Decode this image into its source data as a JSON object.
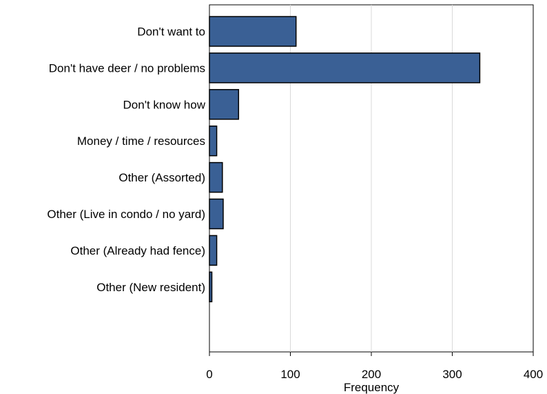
{
  "chart_data": {
    "type": "bar",
    "orientation": "horizontal",
    "categories": [
      "Don't want to",
      "Don't have deer / no problems",
      "Don't know how",
      "Money / time / resources",
      "Other (Assorted)",
      "Other (Live in condo / no yard)",
      "Other (Already had fence)",
      "Other (New resident)"
    ],
    "values": [
      107,
      334,
      36,
      9,
      16,
      17,
      9,
      3
    ],
    "xlabel": "Frequency",
    "ylabel": "",
    "xlim": [
      0,
      400
    ],
    "xticks": [
      "0",
      "100",
      "200",
      "300",
      "400"
    ],
    "grid": "vertical",
    "colors": {
      "bar_fill": "#3a6095",
      "bar_stroke": "#000000",
      "grid": "#d9d9d9",
      "axis": "#000000"
    }
  }
}
